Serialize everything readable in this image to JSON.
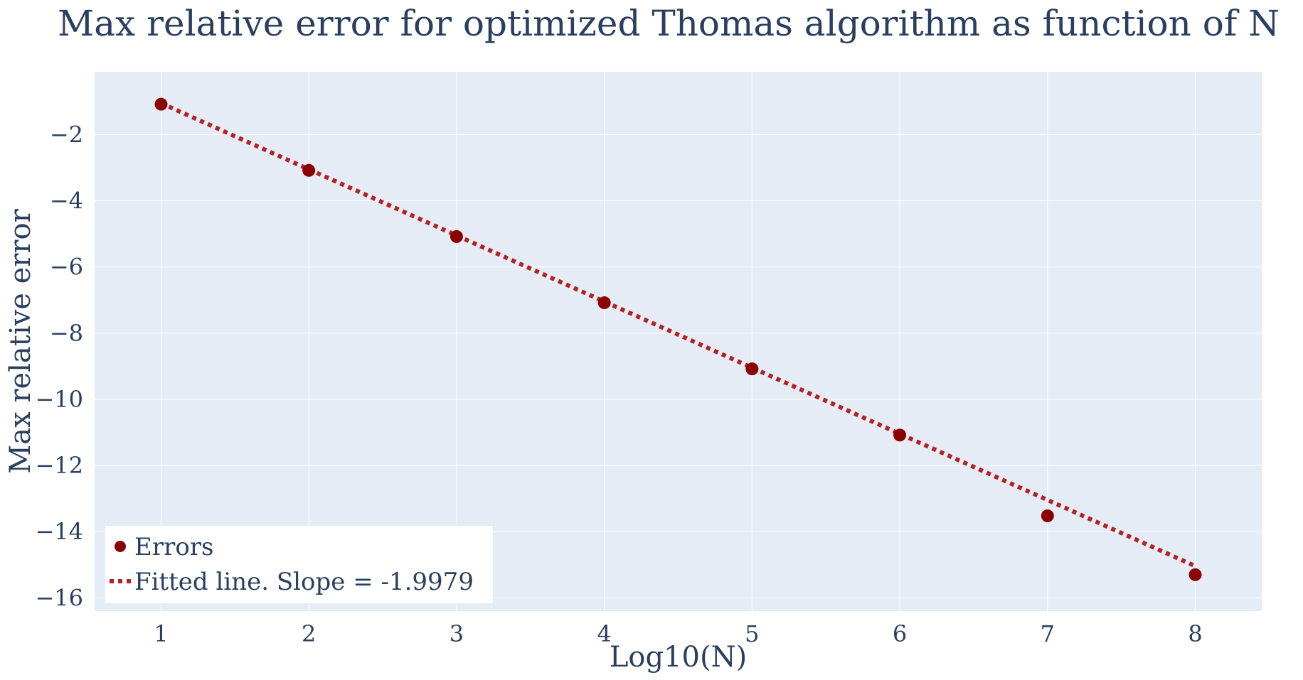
{
  "chart_data": {
    "type": "scatter",
    "title": "Max relative error for optimized Thomas algorithm as function of N",
    "xlabel": "Log10(N)",
    "ylabel": "Max relative error",
    "xlim": [
      0.55,
      8.45
    ],
    "ylim": [
      -16.4,
      -0.1
    ],
    "xticks": [
      1,
      2,
      3,
      4,
      5,
      6,
      7,
      8
    ],
    "yticks": [
      -2,
      -4,
      -6,
      -8,
      -10,
      -12,
      -14,
      -16
    ],
    "grid": true,
    "legend_position": "bottom-left",
    "series": [
      {
        "name": "Errors",
        "mode": "markers",
        "color": "#8b0000",
        "x": [
          1,
          2,
          3,
          4,
          5,
          6,
          7,
          8
        ],
        "y": [
          -1.08,
          -3.08,
          -5.08,
          -7.08,
          -9.08,
          -11.08,
          -13.52,
          -15.3
        ]
      },
      {
        "name": "Fitted line. Slope = -1.9979",
        "mode": "line",
        "dash": "dot",
        "color": "#b22222",
        "x": [
          1,
          8
        ],
        "y": [
          -1.05,
          -15.04
        ]
      }
    ]
  }
}
